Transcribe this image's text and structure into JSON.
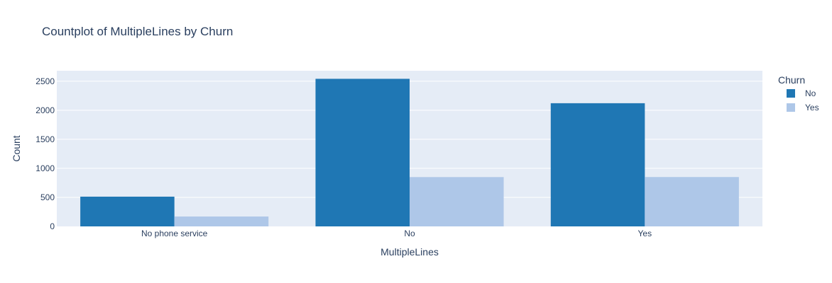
{
  "chart_data": {
    "type": "bar",
    "title": "Countplot of MultipleLines by Churn",
    "xlabel": "MultipleLines",
    "ylabel": "Count",
    "categories": [
      "No phone service",
      "No",
      "Yes"
    ],
    "series": [
      {
        "name": "No",
        "values": [
          512,
          2541,
          2121
        ],
        "color": "#1f77b4"
      },
      {
        "name": "Yes",
        "values": [
          170,
          849,
          850
        ],
        "color": "#aec7e8"
      }
    ],
    "ylim": [
      0,
      2680
    ],
    "yticks": [
      0,
      500,
      1000,
      1500,
      2000,
      2500
    ],
    "legend": {
      "title": "Churn",
      "position": "top-right"
    },
    "grid": true,
    "plot_background": "#e5ecf6"
  }
}
